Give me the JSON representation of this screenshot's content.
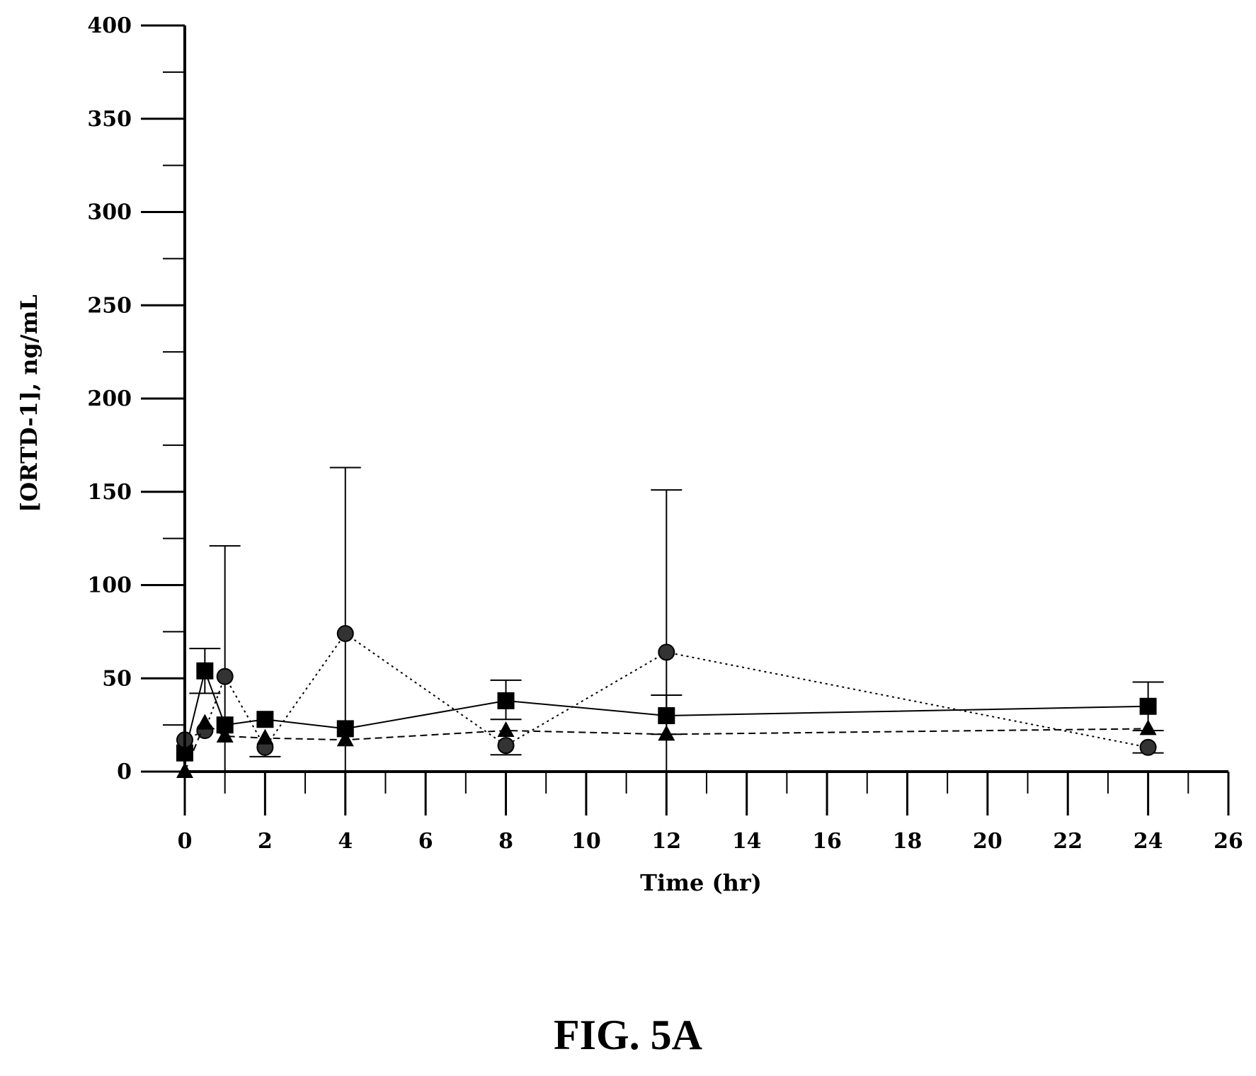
{
  "figure": {
    "caption": "FIG. 5A"
  },
  "chart_data": {
    "type": "line",
    "xlabel": "Time (hr)",
    "ylabel": "[ORTD-1], ng/mL",
    "xlim": [
      0,
      26
    ],
    "ylim": [
      0,
      400
    ],
    "x_ticks": [
      0,
      2,
      4,
      6,
      8,
      10,
      12,
      14,
      16,
      18,
      20,
      22,
      24,
      26
    ],
    "y_ticks": [
      0,
      50,
      100,
      150,
      200,
      250,
      300,
      350,
      400
    ],
    "grid": false,
    "legend": "none",
    "series": [
      {
        "marker": "square",
        "line_style": "solid",
        "x": [
          0,
          0.5,
          1,
          2,
          4,
          8,
          12,
          24
        ],
        "y": [
          10,
          54,
          25,
          28,
          23,
          38,
          30,
          35
        ],
        "err_upper": [
          null,
          66,
          null,
          null,
          null,
          49,
          41,
          48
        ],
        "err_lower": [
          null,
          42,
          null,
          null,
          null,
          28,
          20,
          22
        ]
      },
      {
        "marker": "circle",
        "line_style": "dotted",
        "x": [
          0,
          0.5,
          1,
          2,
          4,
          8,
          12,
          24
        ],
        "y": [
          17,
          22,
          51,
          13,
          74,
          14,
          64,
          13
        ],
        "err_upper": [
          null,
          null,
          121,
          null,
          163,
          null,
          151,
          null
        ],
        "err_lower": [
          null,
          null,
          0,
          8,
          0,
          9,
          0,
          10
        ]
      },
      {
        "marker": "triangle",
        "line_style": "dashed",
        "x": [
          0,
          0.5,
          1,
          2,
          4,
          8,
          12,
          24
        ],
        "y": [
          0,
          26,
          19,
          18,
          17,
          22,
          20,
          23
        ],
        "err_upper": [
          null,
          null,
          null,
          null,
          null,
          null,
          null,
          null
        ],
        "err_lower": [
          null,
          null,
          null,
          null,
          null,
          null,
          null,
          null
        ]
      }
    ]
  }
}
